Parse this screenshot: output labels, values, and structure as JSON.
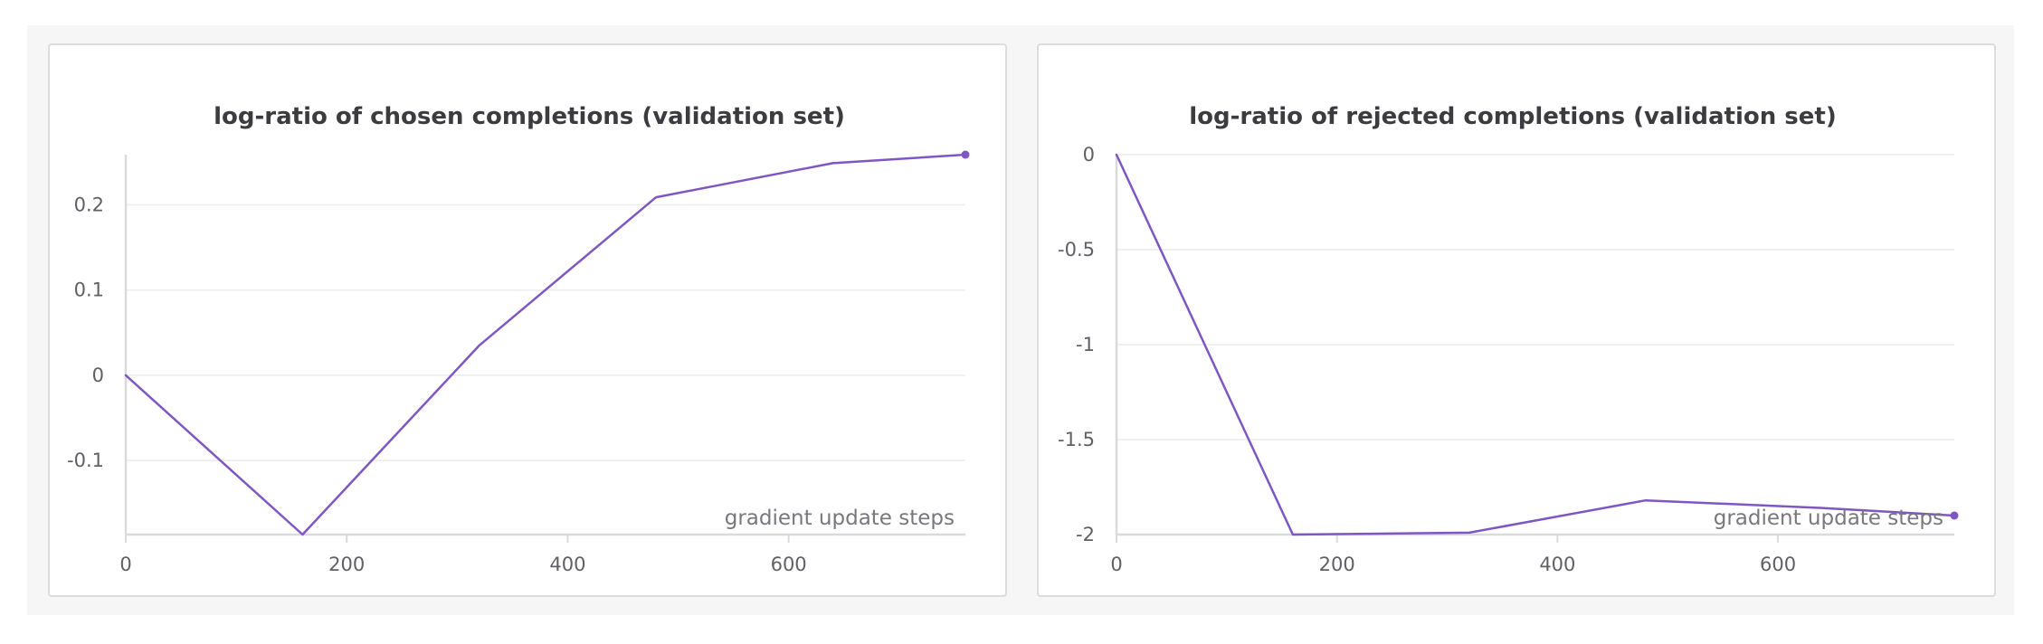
{
  "chart_data": [
    {
      "type": "line",
      "title": "log-ratio of chosen completions (validation set)",
      "xlabel": "gradient update steps",
      "ylabel": "",
      "x": [
        0,
        160,
        320,
        480,
        640,
        760
      ],
      "series": [
        {
          "values": [
            0,
            -0.187,
            0.035,
            0.209,
            0.249,
            0.259
          ]
        }
      ],
      "xlim": [
        0,
        760
      ],
      "ylim": [
        -0.187,
        0.259
      ],
      "xticks": [
        0,
        200,
        400,
        600
      ],
      "xtick_labels": [
        "0",
        "200",
        "400",
        "600"
      ],
      "yticks": [
        0.2,
        0.1,
        0,
        -0.1
      ],
      "ytick_labels": [
        "0.2",
        "0.1",
        "0",
        "-0.1"
      ],
      "grid": true,
      "line_color": "#7e57c2"
    },
    {
      "type": "line",
      "title": "log-ratio of rejected completions (validation set)",
      "xlabel": "gradient update steps",
      "ylabel": "",
      "x": [
        0,
        160,
        320,
        480,
        640,
        760
      ],
      "series": [
        {
          "values": [
            0,
            -2.0,
            -1.99,
            -1.82,
            -1.86,
            -1.9
          ]
        }
      ],
      "xlim": [
        0,
        760
      ],
      "ylim": [
        -2.0,
        0
      ],
      "xticks": [
        0,
        200,
        400,
        600
      ],
      "xtick_labels": [
        "0",
        "200",
        "400",
        "600"
      ],
      "yticks": [
        0,
        -0.5,
        -1,
        -1.5,
        -2
      ],
      "ytick_labels": [
        "0",
        "-0.5",
        "-1",
        "-1.5",
        "-2"
      ],
      "grid": true,
      "line_color": "#7e57c2"
    }
  ]
}
